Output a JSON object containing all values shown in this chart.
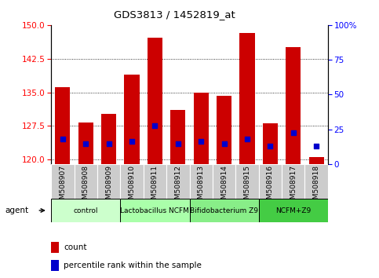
{
  "title": "GDS3813 / 1452819_at",
  "samples": [
    "GSM508907",
    "GSM508908",
    "GSM508909",
    "GSM508910",
    "GSM508911",
    "GSM508912",
    "GSM508913",
    "GSM508914",
    "GSM508915",
    "GSM508916",
    "GSM508917",
    "GSM508918"
  ],
  "bar_heights": [
    136.2,
    128.2,
    130.2,
    139.0,
    147.2,
    131.0,
    135.0,
    134.2,
    148.2,
    128.0,
    145.0,
    120.5
  ],
  "blue_dots": [
    124.5,
    123.5,
    123.5,
    124.0,
    127.5,
    123.5,
    124.0,
    123.5,
    124.5,
    123.0,
    126.0,
    123.0
  ],
  "bar_color": "#cc0000",
  "dot_color": "#0000cc",
  "ylim_left": [
    119,
    150
  ],
  "yticks_left": [
    120,
    127.5,
    135,
    142.5,
    150
  ],
  "ylim_right": [
    0,
    100
  ],
  "yticks_right": [
    0,
    25,
    50,
    75,
    100
  ],
  "groups": [
    {
      "label": "control",
      "start": 0,
      "end": 3,
      "color": "#ccffcc"
    },
    {
      "label": "Lactobacillus NCFM",
      "start": 3,
      "end": 6,
      "color": "#aaffaa"
    },
    {
      "label": "Bifidobacterium Z9",
      "start": 6,
      "end": 9,
      "color": "#88ee88"
    },
    {
      "label": "NCFM+Z9",
      "start": 9,
      "end": 12,
      "color": "#44cc44"
    }
  ],
  "legend_count_color": "#cc0000",
  "legend_pct_color": "#0000cc",
  "xtick_bg": "#cccccc",
  "group_border": "#000000"
}
